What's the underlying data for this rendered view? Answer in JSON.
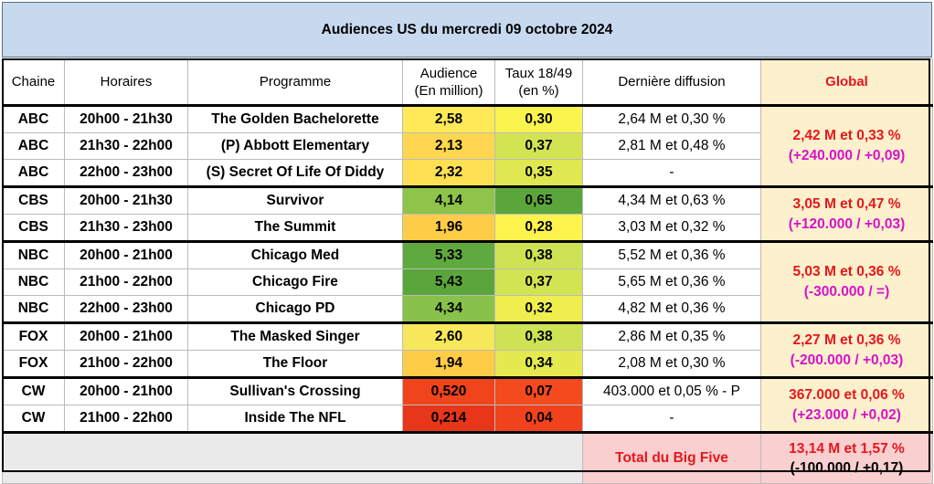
{
  "title": "Audiences US du mercredi 09 octobre 2024",
  "headers": {
    "chaine": "Chaine",
    "horaires": "Horaires",
    "programme": "Programme",
    "audience_l1": "Audience",
    "audience_l2": "(En million)",
    "taux_l1": "Taux 18/49",
    "taux_l2": "(en %)",
    "derniere": "Dernière diffusion",
    "global": "Global"
  },
  "rows": [
    {
      "chaine": "ABC",
      "horaires": "20h00 -  21h30",
      "programme": "The Golden Bachelorette",
      "audience": "2,58",
      "taux": "0,30",
      "derniere": "2,64 M et 0,30 %",
      "aud_color": "#ffe958",
      "taux_color": "#f9f44e"
    },
    {
      "chaine": "ABC",
      "horaires": "21h30 - 22h00",
      "programme": "(P) Abbott Elementary",
      "audience": "2,13",
      "taux": "0,37",
      "derniere": "2,81 M et 0,48 %",
      "aud_color": "#ffd64f",
      "taux_color": "#d3e453"
    },
    {
      "chaine": "ABC",
      "horaires": "22h00 - 23h00",
      "programme": "(S) Secret Of Life Of Diddy",
      "audience": "2,32",
      "taux": "0,35",
      "derniere": "-",
      "aud_color": "#ffe054",
      "taux_color": "#e0e851"
    },
    {
      "chaine": "CBS",
      "horaires": "20h00 - 21h30",
      "programme": "Survivor",
      "audience": "4,14",
      "taux": "0,65",
      "derniere": "4,34 M et 0,63 %",
      "aud_color": "#8dc449",
      "taux_color": "#5aa63b"
    },
    {
      "chaine": "CBS",
      "horaires": "21h30 - 23h00",
      "programme": "The Summit",
      "audience": "1,96",
      "taux": "0,28",
      "derniere": "3,03 M et 0,32 %",
      "aud_color": "#ffcc47",
      "taux_color": "#fff34d"
    },
    {
      "chaine": "NBC",
      "horaires": "20h00 - 21h00",
      "programme": "Chicago Med",
      "audience": "5,33",
      "taux": "0,38",
      "derniere": "5,52 M et 0,36 %",
      "aud_color": "#60a93f",
      "taux_color": "#cde354"
    },
    {
      "chaine": "NBC",
      "horaires": "21h00 - 22h00",
      "programme": "Chicago Fire",
      "audience": "5,43",
      "taux": "0,37",
      "derniere": "5,65 M et 0,36 %",
      "aud_color": "#5aa63b",
      "taux_color": "#d3e453"
    },
    {
      "chaine": "NBC",
      "horaires": "22h00 - 23h00",
      "programme": "Chicago PD",
      "audience": "4,34",
      "taux": "0,32",
      "derniere": "4,82 M et 0,36 %",
      "aud_color": "#88c24a",
      "taux_color": "#eeef4f"
    },
    {
      "chaine": "FOX",
      "horaires": "20h00 - 21h00",
      "programme": "The Masked Singer",
      "audience": "2,60",
      "taux": "0,38",
      "derniere": "2,86 M et 0,35 %",
      "aud_color": "#f6e85a",
      "taux_color": "#cde354"
    },
    {
      "chaine": "FOX",
      "horaires": "21h00 - 22h00",
      "programme": "The Floor",
      "audience": "1,94",
      "taux": "0,34",
      "derniere": "2,08 M et 0,30 %",
      "aud_color": "#ffcc47",
      "taux_color": "#e4e950"
    },
    {
      "chaine": "CW",
      "horaires": "20h00 - 21h00",
      "programme": "Sullivan's Crossing",
      "audience": "0,520",
      "taux": "0,07",
      "derniere": "403.000 et 0,05 % - P",
      "aud_color": "#f0441c",
      "taux_color": "#f34a1e"
    },
    {
      "chaine": "CW",
      "horaires": "21h00 - 22h00",
      "programme": "Inside The NFL",
      "audience": "0,214",
      "taux": "0,04",
      "derniere": "-",
      "aud_color": "#e8361a",
      "taux_color": "#f0431d"
    }
  ],
  "globals": [
    {
      "l1": "2,42 M et 0,33 %",
      "l2": "(+240.000 / +0,09)"
    },
    {
      "l1": "3,05 M et 0,47 %",
      "l2": "(+120.000 / +0,03)"
    },
    {
      "l1": "5,03 M et 0,36 %",
      "l2": "(-300.000 / =)"
    },
    {
      "l1": "2,27 M et 0,36 %",
      "l2": "(-200.000 / +0,03)"
    },
    {
      "l1": "367.000 et 0,06 %",
      "l2": "(+23.000 / +0,02)"
    }
  ],
  "total": {
    "label": "Total du Big Five",
    "l1": "13,14 M et 1,57 %",
    "l2": "(-100.000 / +0,17)"
  }
}
